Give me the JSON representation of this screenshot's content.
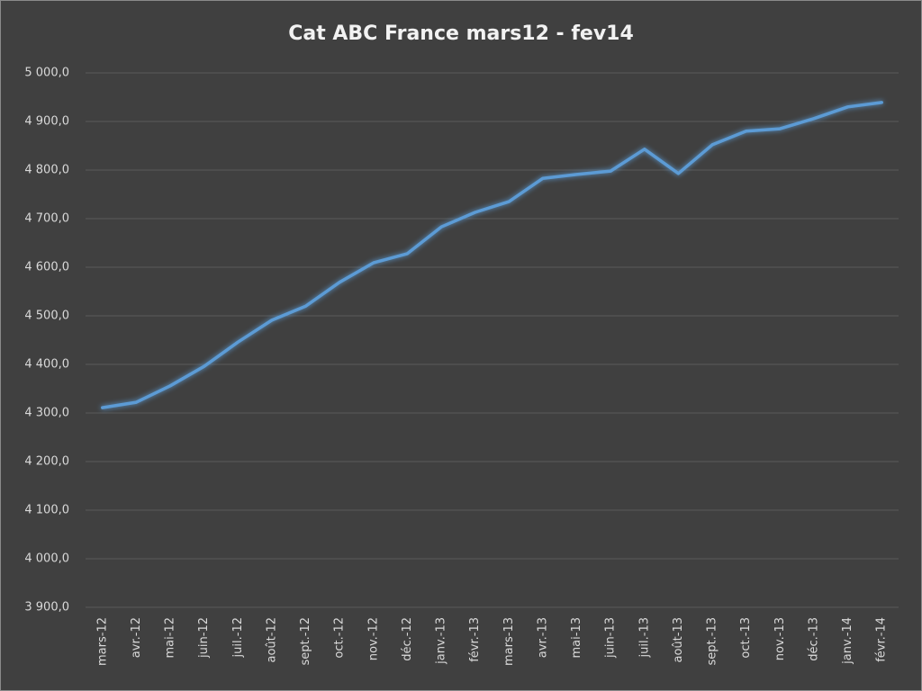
{
  "chart_data": {
    "type": "line",
    "title": "Cat ABC France mars12 - fev14",
    "categories": [
      "mars-12",
      "avr.-12",
      "mai-12",
      "juin-12",
      "juil.-12",
      "août-12",
      "sept.-12",
      "oct.-12",
      "nov.-12",
      "déc.-12",
      "janv.-13",
      "févr.-13",
      "mars-13",
      "avr.-13",
      "mai-13",
      "juin-13",
      "juil.-13",
      "août-13",
      "sept.-13",
      "oct.-13",
      "nov.-13",
      "déc.-13",
      "janv.-14",
      "févr.-14"
    ],
    "values": [
      4311,
      4322,
      4356,
      4396,
      4446,
      4491,
      4520,
      4569,
      4609,
      4628,
      4683,
      4713,
      4735,
      4783,
      4791,
      4798,
      4843,
      4793,
      4852,
      4880,
      4885,
      4906,
      4930,
      4939
    ],
    "color": "#5b9bd5",
    "ylim": [
      3900,
      5000
    ],
    "yticks": [
      {
        "value": 3900,
        "label": "3 900,0"
      },
      {
        "value": 4000,
        "label": "4 000,0"
      },
      {
        "value": 4100,
        "label": "4 100,0"
      },
      {
        "value": 4200,
        "label": "4 200,0"
      },
      {
        "value": 4300,
        "label": "4 300,0"
      },
      {
        "value": 4400,
        "label": "4 400,0"
      },
      {
        "value": 4500,
        "label": "4 500,0"
      },
      {
        "value": 4600,
        "label": "4 600,0"
      },
      {
        "value": 4700,
        "label": "4 700,0"
      },
      {
        "value": 4800,
        "label": "4 800,0"
      },
      {
        "value": 4900,
        "label": "4 900,0"
      },
      {
        "value": 5000,
        "label": "5 000,0"
      }
    ],
    "grid": true
  }
}
